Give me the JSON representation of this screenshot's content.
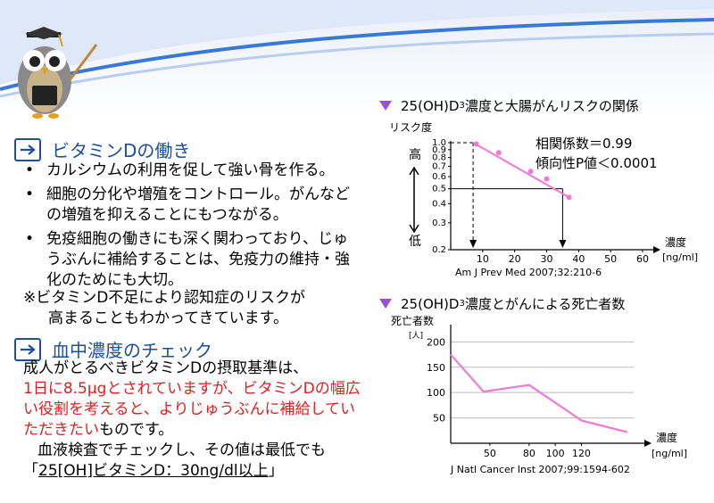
{
  "section1": {
    "title": "ビタミンDの働き",
    "bullets": [
      "カルシウムの利用を促して強い骨を作る。",
      "細胞の分化や増殖をコントロール。がんなどの増殖を抑えることにもつながる。",
      "免疫細胞の働きにも深く関わっており、じゅうぶんに補給することは、免疫力の維持・強化のためにも大切。"
    ],
    "note_line1": "※ビタミンD不足により認知症のリスクが",
    "note_line2": "高まることもわかってきています。"
  },
  "section2": {
    "title": "血中濃度のチェック",
    "para_black1": "成人がとるべきビタミンDの摂取基準は、",
    "para_red": "1日に8.5μgとされていますが、ビタミンDの幅広い役割を考えると、よりじゅうぶんに補給していただきたい",
    "para_black2": "ものです。",
    "para_black3": "血液検査でチェックし、その値は最低でも",
    "quote_open": "「",
    "quote_value": "25[OH]ビタミンD：30ng/dl以上",
    "quote_close": "」"
  },
  "bullet_symbol": "•",
  "colors": {
    "accent_blue": "#1b4fa0",
    "pink": "#f27ad6",
    "red": "#e11f1f",
    "triangle": "#9b4fd6"
  },
  "chart_data": [
    {
      "type": "scatter",
      "title_pre": "25(OH)D",
      "title_sub": "3",
      "title_post": "濃度と大腸がんリスクの関係",
      "ylabel": "リスク度",
      "y_high": "高",
      "y_low": "低",
      "xlabel": "濃度",
      "xunit": "[ng/ml]",
      "xlim": [
        0,
        60
      ],
      "ylim": [
        0.2,
        1.0
      ],
      "y_scale": "log",
      "x_ticks": [
        10,
        20,
        30,
        40,
        50,
        60
      ],
      "y_ticks": [
        "1.0",
        "0.9",
        "0.8",
        "0.7",
        "0.6",
        "0.5",
        "0.4",
        "0.3",
        "0.2"
      ],
      "x": [
        8,
        15,
        25,
        30,
        37
      ],
      "y": [
        0.98,
        0.86,
        0.65,
        0.58,
        0.44
      ],
      "trend": {
        "x": [
          7,
          37
        ],
        "y": [
          1.0,
          0.44
        ]
      },
      "reference": {
        "x": 35,
        "y": 0.5
      },
      "stat1": "相関係数＝0.99",
      "stat2": "傾向性P値＜0.0001",
      "source": "Am J Prev Med 2007;32:210-6"
    },
    {
      "type": "line",
      "title_pre": "25(OH)D",
      "title_sub": "3",
      "title_post": "濃度とがんによる死亡者数",
      "ylabel": "死亡者数",
      "yunit": "[人]",
      "xlabel": "濃度",
      "xunit": "[ng/ml]",
      "xlim": [
        20,
        160
      ],
      "ylim": [
        0,
        220
      ],
      "x_ticks": [
        50,
        80,
        100,
        120
      ],
      "y_ticks": [
        50,
        100,
        150,
        200
      ],
      "grid": true,
      "x": [
        20,
        45,
        80,
        100,
        120,
        155
      ],
      "y": [
        175,
        102,
        115,
        80,
        45,
        22
      ],
      "source": "J Natl Cancer Inst 2007;99:1594-602"
    }
  ]
}
